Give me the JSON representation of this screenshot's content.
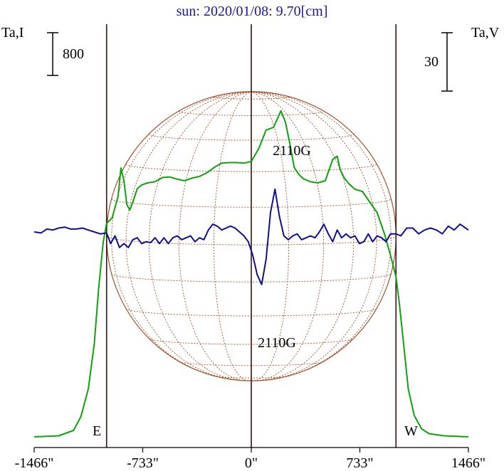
{
  "chart_data": {
    "type": "line",
    "title": "sun: 2020/01/08: 9.70[cm]",
    "left_axis_label": "Ta,I",
    "right_axis_label": "Ta,V",
    "left_scale_bar": "800",
    "right_scale_bar": "30",
    "xlim": [
      -1466,
      1466
    ],
    "x_ticks": [
      {
        "value": -1466,
        "label": "-1466\""
      },
      {
        "value": -733,
        "label": "-733\""
      },
      {
        "value": 0,
        "label": "0\""
      },
      {
        "value": 733,
        "label": "733\""
      },
      {
        "value": 1466,
        "label": "1466\""
      }
    ],
    "vertical_markers": [
      -977,
      0,
      977
    ],
    "limb_labels": {
      "east": "E",
      "west": "W"
    },
    "solar_disk_radius": 977,
    "annotations": [
      {
        "text": "2110G",
        "x": 270,
        "position": "above"
      },
      {
        "text": "2110G",
        "x": 160,
        "position": "below"
      }
    ],
    "colors": {
      "stokes_i": "#10a010",
      "stokes_v": "#10108c",
      "disk": "#a0522d",
      "markers": "#3a1010",
      "title": "#1a1a8c"
    },
    "series": [
      {
        "name": "I",
        "x": [
          -1466,
          -1300,
          -1200,
          -1150,
          -1100,
          -1060,
          -1030,
          -1000,
          -977,
          -940,
          -900,
          -880,
          -860,
          -840,
          -820,
          -800,
          -770,
          -740,
          -700,
          -650,
          -600,
          -550,
          -500,
          -450,
          -400,
          -350,
          -300,
          -250,
          -200,
          -150,
          -100,
          -50,
          0,
          50,
          100,
          150,
          200,
          230,
          260,
          290,
          320,
          350,
          400,
          450,
          500,
          550,
          580,
          600,
          630,
          660,
          700,
          750,
          800,
          850,
          900,
          940,
          977,
          1000,
          1030,
          1060,
          1100,
          1150,
          1200,
          1300,
          1466
        ],
        "y": [
          0,
          20,
          120,
          380,
          900,
          1750,
          2800,
          3650,
          4000,
          4100,
          4500,
          5040,
          4800,
          4350,
          4250,
          4400,
          4650,
          4720,
          4760,
          4780,
          4860,
          4870,
          4830,
          4800,
          4850,
          4880,
          4950,
          5050,
          5130,
          5140,
          5140,
          5130,
          5160,
          5400,
          5750,
          5800,
          6110,
          5900,
          5500,
          5050,
          4920,
          4840,
          4780,
          4760,
          4800,
          5200,
          5260,
          5010,
          4840,
          4740,
          4640,
          4600,
          4400,
          4200,
          3800,
          3400,
          3000,
          2500,
          1700,
          900,
          400,
          150,
          60,
          20,
          0
        ]
      },
      {
        "name": "V",
        "x": [
          -1466,
          -1420,
          -1380,
          -1340,
          -1300,
          -1260,
          -1220,
          -1180,
          -1140,
          -1100,
          -1060,
          -1020,
          -977,
          -950,
          -920,
          -890,
          -860,
          -830,
          -800,
          -770,
          -740,
          -710,
          -680,
          -650,
          -620,
          -590,
          -560,
          -530,
          -500,
          -470,
          -440,
          -410,
          -380,
          -350,
          -320,
          -290,
          -260,
          -230,
          -200,
          -170,
          -140,
          -110,
          -80,
          -50,
          -20,
          10,
          40,
          70,
          100,
          130,
          160,
          190,
          220,
          250,
          280,
          310,
          340,
          370,
          400,
          430,
          460,
          490,
          520,
          550,
          580,
          610,
          640,
          670,
          700,
          730,
          760,
          790,
          820,
          850,
          880,
          910,
          940,
          977,
          1010,
          1050,
          1090,
          1130,
          1170,
          1210,
          1250,
          1290,
          1330,
          1370,
          1410,
          1466
        ],
        "y": [
          0,
          -0.5,
          1.5,
          1,
          2,
          2.5,
          1.5,
          1.5,
          2,
          1,
          0,
          -1,
          -0.5,
          -6,
          -2,
          -8,
          -6,
          -8,
          -4,
          -3,
          -6,
          -5,
          -5.5,
          -3,
          -6,
          -3,
          -6,
          -3,
          -2,
          -4,
          -3,
          -2,
          -5,
          -3,
          -4,
          1,
          4,
          3,
          1,
          2,
          3,
          2,
          0,
          -2,
          -5,
          -12,
          -22,
          -27,
          -14,
          10,
          22,
          8,
          -2,
          -4,
          -2,
          -1,
          -4,
          -3,
          -2,
          -3,
          0,
          4,
          -1,
          -5,
          1,
          -3,
          -1,
          -3,
          -2,
          -6,
          -5,
          -1,
          -5,
          -2,
          -3,
          -5,
          -1,
          -1,
          -2,
          2,
          2,
          -1,
          1,
          2,
          1,
          -1,
          3,
          1,
          4,
          1
        ]
      }
    ]
  }
}
